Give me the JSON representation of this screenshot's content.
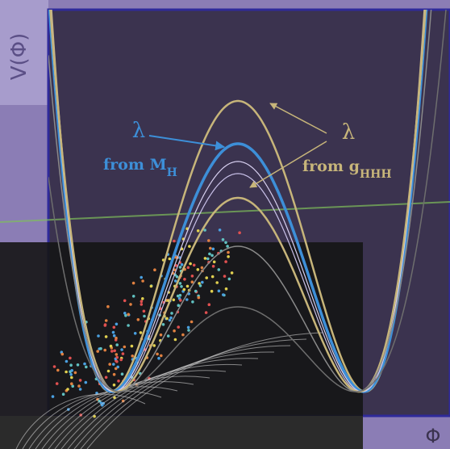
{
  "axis_labels": {
    "y": "V(Φ)",
    "x": "Φ"
  },
  "annotations": [
    {
      "symbol": "λ",
      "text": "from M",
      "subscript": "H"
    },
    {
      "symbol": "λ",
      "text": "from g",
      "subscript": "HHH"
    }
  ]
}
